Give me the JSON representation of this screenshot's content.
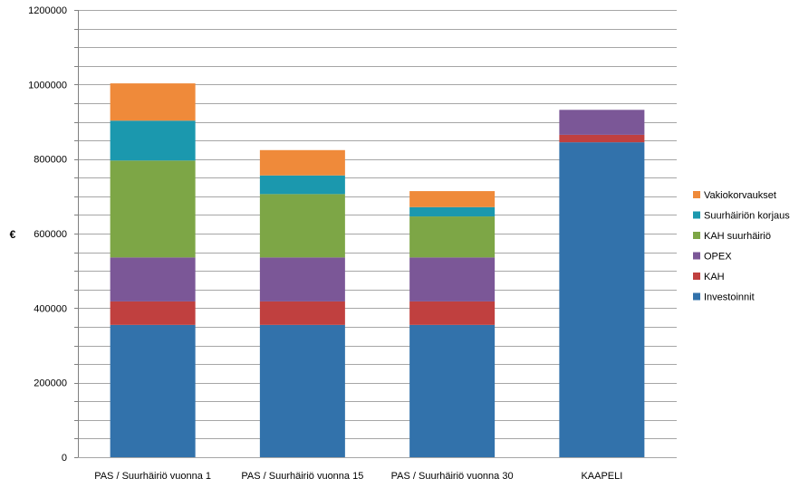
{
  "chart_data": {
    "type": "bar",
    "stacked": true,
    "title": "",
    "xlabel": "",
    "ylabel": "€",
    "ylim": [
      0,
      1200000
    ],
    "y_ticks": [
      0,
      200000,
      400000,
      600000,
      800000,
      1000000,
      1200000
    ],
    "y_tick_labels": [
      "0",
      "200000",
      "400000",
      "600000",
      "800000",
      "1000000",
      "1200000"
    ],
    "grid": true,
    "legend_position": "right",
    "categories": [
      "PAS / Suurhäiriö vuonna 1",
      "PAS / Suurhäiriö vuonna 15",
      "PAS / Suurhäiriö vuonna 30",
      "KAAPELI"
    ],
    "series": [
      {
        "name": "Investoinnit",
        "color": "#3272ab",
        "values": [
          355000,
          355000,
          355000,
          845000
        ]
      },
      {
        "name": "KAH",
        "color": "#c0403f",
        "values": [
          63000,
          63000,
          63000,
          20000
        ]
      },
      {
        "name": "OPEX",
        "color": "#7b5797",
        "values": [
          118000,
          118000,
          118000,
          67000
        ]
      },
      {
        "name": "KAH suurhäiriö",
        "color": "#7da646",
        "values": [
          260000,
          170000,
          110000,
          0
        ]
      },
      {
        "name": "Suurhäiriön korjaus",
        "color": "#1b98ae",
        "values": [
          107000,
          50000,
          25000,
          0
        ]
      },
      {
        "name": "Vakiokorvaukset",
        "color": "#ef8a3a",
        "values": [
          100000,
          68000,
          43000,
          0
        ]
      }
    ]
  }
}
